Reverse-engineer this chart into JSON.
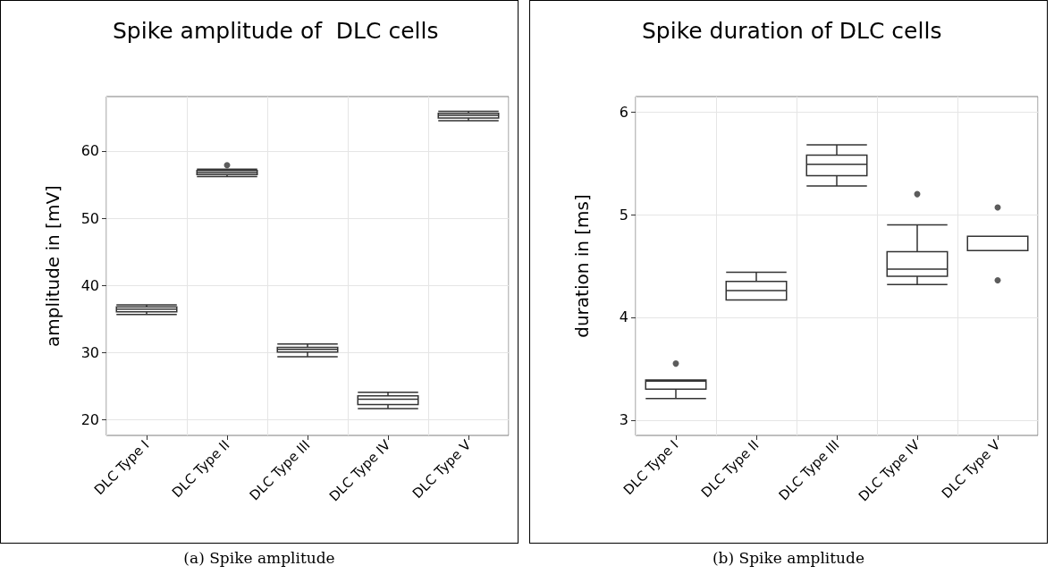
{
  "chart_data": [
    {
      "type": "box",
      "title": "Spike amplitude of  DLC cells",
      "ylabel": "amplitude in [mV]",
      "categories": [
        "DLC Type I",
        "DLC Type II",
        "DLC Type III",
        "DLC Type IV",
        "DLC Type V"
      ],
      "boxes": [
        {
          "low": 35.7,
          "q1": 36.1,
          "median": 36.5,
          "q3": 36.8,
          "high": 37.1
        },
        {
          "low": 56.2,
          "q1": 56.5,
          "median": 56.8,
          "q3": 57.1,
          "high": 57.3,
          "outliers": [
            57.9
          ]
        },
        {
          "low": 29.4,
          "q1": 30.1,
          "median": 30.5,
          "q3": 30.8,
          "high": 31.3
        },
        {
          "low": 21.7,
          "q1": 22.3,
          "median": 23.1,
          "q3": 23.6,
          "high": 24.1
        },
        {
          "low": 64.5,
          "q1": 64.9,
          "median": 65.3,
          "q3": 65.6,
          "high": 65.9
        }
      ],
      "ylim": [
        17.7,
        68.1
      ],
      "yticks": [
        20,
        30,
        40,
        50,
        60
      ],
      "grid": true,
      "annotations": [
        "(a) Spike amplitude"
      ]
    },
    {
      "type": "box",
      "title": "Spike duration of DLC cells",
      "ylabel": "duration in [ms]",
      "categories": [
        "DLC Type I",
        "DLC Type II",
        "DLC Type III",
        "DLC Type IV",
        "DLC Type V"
      ],
      "boxes": [
        {
          "low": 3.21,
          "q1": 3.3,
          "median": 3.38,
          "q3": 3.39,
          "high": 3.39,
          "outliers": [
            3.55
          ]
        },
        {
          "low": 4.17,
          "q1": 4.17,
          "median": 4.26,
          "q3": 4.35,
          "high": 4.44
        },
        {
          "low": 5.28,
          "q1": 5.38,
          "median": 5.49,
          "q3": 5.58,
          "high": 5.68
        },
        {
          "low": 4.32,
          "q1": 4.4,
          "median": 4.47,
          "q3": 4.64,
          "high": 4.9,
          "outliers": [
            5.2
          ]
        },
        {
          "low": 4.65,
          "q1": 4.65,
          "median": 4.79,
          "q3": 4.79,
          "high": 4.79,
          "outliers": [
            5.07,
            4.36
          ]
        }
      ],
      "ylim": [
        2.85,
        6.15
      ],
      "yticks": [
        3,
        4,
        5,
        6
      ],
      "grid": true,
      "annotations": [
        "(b) Spike amplitude"
      ]
    }
  ]
}
